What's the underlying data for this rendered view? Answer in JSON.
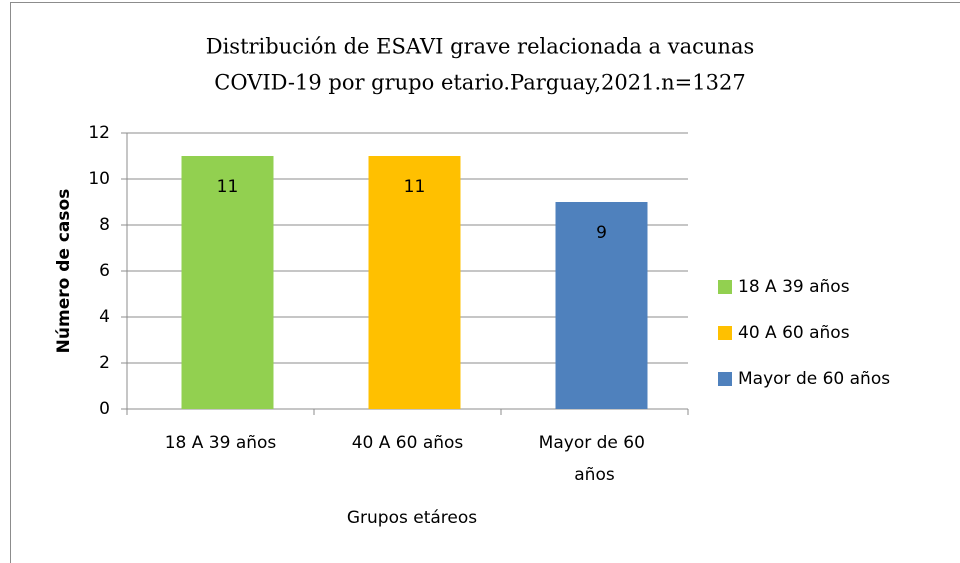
{
  "chart_data": {
    "type": "bar",
    "title": [
      "Distribución de ESAVI grave relacionada a vacunas",
      "COVID-19 por grupo etario.Parguay,2021.n=1327"
    ],
    "x_label": "Grupos etáreos",
    "y_label": "Número de casos",
    "categories": [
      "18 A 39 años",
      "40 A 60 años",
      "Mayor de 60 años"
    ],
    "values": [
      11,
      11,
      9
    ],
    "colors": [
      "#92d050",
      "#ffc000",
      "#4f81bd"
    ],
    "ylim": [
      0,
      12
    ],
    "yticks": [
      0,
      2,
      4,
      6,
      8,
      10,
      12
    ],
    "grid": true,
    "legend": "right"
  }
}
